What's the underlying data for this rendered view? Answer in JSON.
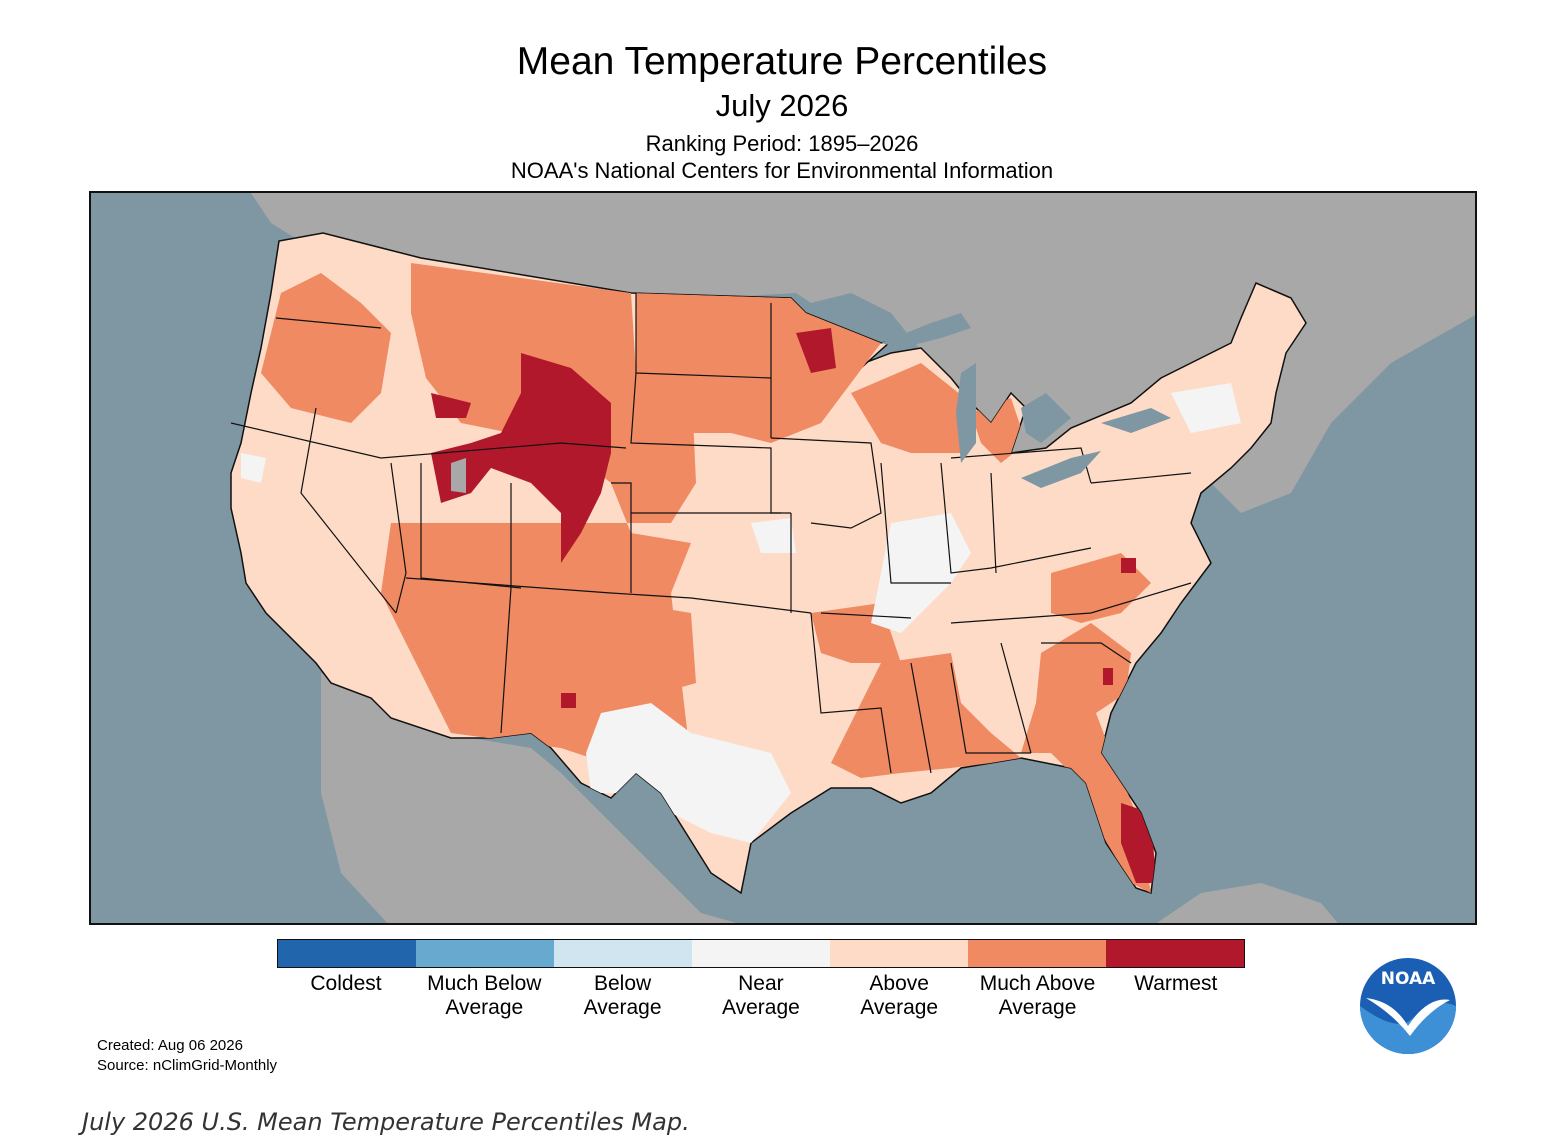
{
  "header": {
    "title": "Mean Temperature Percentiles",
    "subtitle": "July 2026",
    "ranking_period": "Ranking Period: 1895–2026",
    "source_org": "NOAA's National Centers for Environmental Information"
  },
  "legend": [
    {
      "line1": "Coldest",
      "line2": "",
      "color": "#2166ac"
    },
    {
      "line1": "Much Below",
      "line2": "Average",
      "color": "#67a9cf"
    },
    {
      "line1": "Below",
      "line2": "Average",
      "color": "#d1e5f0"
    },
    {
      "line1": "Near",
      "line2": "Average",
      "color": "#f4f4f4"
    },
    {
      "line1": "Above",
      "line2": "Average",
      "color": "#fddbc7"
    },
    {
      "line1": "Much Above",
      "line2": "Average",
      "color": "#ef8a62"
    },
    {
      "line1": "Warmest",
      "line2": "",
      "color": "#b2182b"
    }
  ],
  "footer": {
    "created": "Created: Aug 06 2026",
    "source": "Source: nClimGrid-Monthly"
  },
  "logo": {
    "text": "NOAA",
    "icon": "noaa-logo-icon"
  },
  "caption": "July 2026 U.S. Mean Temperature Percentiles Map.",
  "colors": {
    "ocean": "#7e97a2",
    "land_outside": "#a8a8a8",
    "border": "#111111"
  }
}
